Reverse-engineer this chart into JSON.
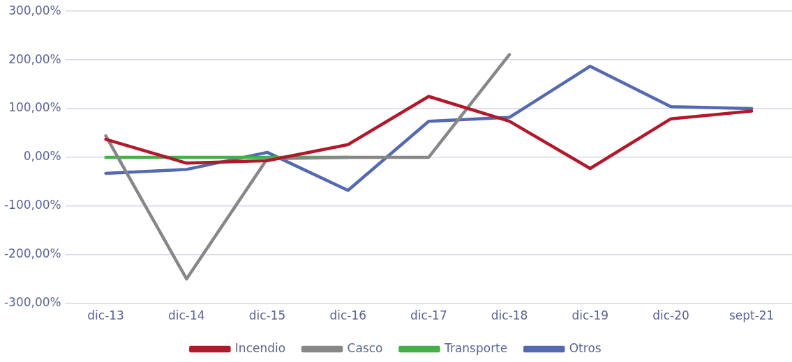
{
  "chart_data": {
    "type": "line",
    "categories": [
      "dic-13",
      "dic-14",
      "dic-15",
      "dic-16",
      "dic-17",
      "dic-18",
      "dic-19",
      "dic-20",
      "sept-21"
    ],
    "series": [
      {
        "name": "Incendio",
        "color": "#b2182b",
        "values": [
          37,
          -12,
          -7,
          26,
          125,
          74,
          -23,
          79,
          95
        ]
      },
      {
        "name": "Casco",
        "color": "#878787",
        "values": [
          44,
          -250,
          -3,
          0,
          0,
          211,
          null,
          null,
          null
        ]
      },
      {
        "name": "Transporte",
        "color": "#45b049",
        "values": [
          0,
          0,
          0,
          0,
          null,
          null,
          null,
          null,
          null
        ]
      },
      {
        "name": "Otros",
        "color": "#5469b0",
        "values": [
          -33,
          -25,
          10,
          -68,
          74,
          82,
          187,
          104,
          100
        ]
      }
    ],
    "ylim": [
      -300,
      300
    ],
    "yticks": [
      {
        "value": -300,
        "label": "-300,00%"
      },
      {
        "value": -200,
        "label": "-200,00%"
      },
      {
        "value": -100,
        "label": "-100,00%"
      },
      {
        "value": 0,
        "label": "0,00%"
      },
      {
        "value": 100,
        "label": "100,00%"
      },
      {
        "value": 200,
        "label": "200,00%"
      },
      {
        "value": 300,
        "label": "300,00%"
      }
    ],
    "grid": "y",
    "legend": "bottom",
    "marker": "none",
    "line_style": "solid"
  }
}
